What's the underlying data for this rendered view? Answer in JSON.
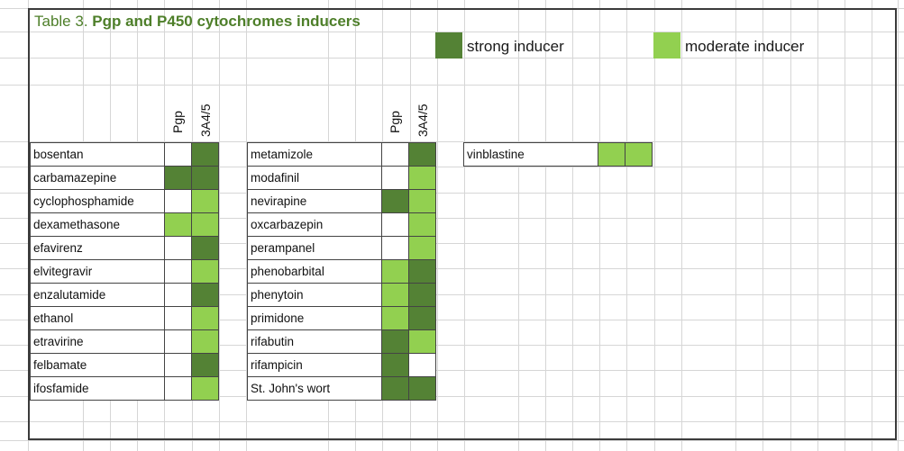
{
  "title": {
    "prefix": "Table 3. ",
    "bold": "Pgp and P450 cytochromes inducers"
  },
  "legend": {
    "strong_label": "strong inducer",
    "moderate_label": "moderate inducer",
    "strong_color": "#548235",
    "moderate_color": "#92d050"
  },
  "columns": {
    "pgp": "Pgp",
    "cyp": "3A4/5"
  },
  "table_left": [
    {
      "name": "bosentan",
      "pgp": "none",
      "cyp": "strong"
    },
    {
      "name": "carbamazepine",
      "pgp": "strong",
      "cyp": "strong"
    },
    {
      "name": "cyclophosphamide",
      "pgp": "none",
      "cyp": "moderate"
    },
    {
      "name": "dexamethasone",
      "pgp": "moderate",
      "cyp": "moderate"
    },
    {
      "name": "efavirenz",
      "pgp": "none",
      "cyp": "strong"
    },
    {
      "name": "elvitegravir",
      "pgp": "none",
      "cyp": "moderate"
    },
    {
      "name": "enzalutamide",
      "pgp": "none",
      "cyp": "strong"
    },
    {
      "name": "ethanol",
      "pgp": "none",
      "cyp": "moderate"
    },
    {
      "name": "etravirine",
      "pgp": "none",
      "cyp": "moderate"
    },
    {
      "name": "felbamate",
      "pgp": "none",
      "cyp": "strong"
    },
    {
      "name": "ifosfamide",
      "pgp": "none",
      "cyp": "moderate"
    }
  ],
  "table_middle": [
    {
      "name": "metamizole",
      "pgp": "none",
      "cyp": "strong"
    },
    {
      "name": "modafinil",
      "pgp": "none",
      "cyp": "moderate"
    },
    {
      "name": "nevirapine",
      "pgp": "strong",
      "cyp": "moderate"
    },
    {
      "name": "oxcarbazepin",
      "pgp": "none",
      "cyp": "moderate"
    },
    {
      "name": "perampanel",
      "pgp": "none",
      "cyp": "moderate"
    },
    {
      "name": "phenobarbital",
      "pgp": "moderate",
      "cyp": "strong"
    },
    {
      "name": "phenytoin",
      "pgp": "moderate",
      "cyp": "strong"
    },
    {
      "name": "primidone",
      "pgp": "moderate",
      "cyp": "strong"
    },
    {
      "name": "rifabutin",
      "pgp": "strong",
      "cyp": "moderate"
    },
    {
      "name": "rifampicin",
      "pgp": "strong",
      "cyp": "none"
    },
    {
      "name": "St. John's wort",
      "pgp": "strong",
      "cyp": "strong"
    }
  ],
  "table_right": [
    {
      "name": "vinblastine",
      "pgp": "moderate",
      "cyp": "moderate"
    }
  ]
}
